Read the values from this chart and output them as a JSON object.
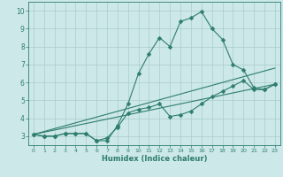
{
  "xlabel": "Humidex (Indice chaleur)",
  "xlim": [
    -0.5,
    23.5
  ],
  "ylim": [
    2.5,
    10.5
  ],
  "xticks": [
    0,
    1,
    2,
    3,
    4,
    5,
    6,
    7,
    8,
    9,
    10,
    11,
    12,
    13,
    14,
    15,
    16,
    17,
    18,
    19,
    20,
    21,
    22,
    23
  ],
  "yticks": [
    3,
    4,
    5,
    6,
    7,
    8,
    9,
    10
  ],
  "background_color": "#cce8e8",
  "grid_color": "#aacccc",
  "line_color": "#2e7d6e",
  "line1_x": [
    0,
    1,
    2,
    3,
    4,
    5,
    6,
    7,
    8,
    9,
    10,
    11,
    12,
    13,
    14,
    15,
    16,
    17,
    18,
    19,
    20,
    21,
    22,
    23
  ],
  "line1_y": [
    3.1,
    3.0,
    3.0,
    3.15,
    3.15,
    3.15,
    2.75,
    2.75,
    3.6,
    4.8,
    6.5,
    7.6,
    8.5,
    8.0,
    9.4,
    9.6,
    9.95,
    9.0,
    8.4,
    7.0,
    6.7,
    5.7,
    5.6,
    5.9
  ],
  "line2_x": [
    0,
    1,
    2,
    3,
    4,
    5,
    6,
    7,
    8,
    9,
    10,
    11,
    12,
    13,
    14,
    15,
    16,
    17,
    18,
    19,
    20,
    21,
    22,
    23
  ],
  "line2_y": [
    3.1,
    3.0,
    3.0,
    3.15,
    3.15,
    3.15,
    2.75,
    2.9,
    3.5,
    4.3,
    4.5,
    4.6,
    4.8,
    4.1,
    4.2,
    4.4,
    4.8,
    5.2,
    5.5,
    5.8,
    6.1,
    5.6,
    5.6,
    5.9
  ],
  "line3_x": [
    0,
    23
  ],
  "line3_y": [
    3.1,
    6.8
  ],
  "line4_x": [
    0,
    23
  ],
  "line4_y": [
    3.1,
    5.9
  ],
  "markersize": 2.5
}
